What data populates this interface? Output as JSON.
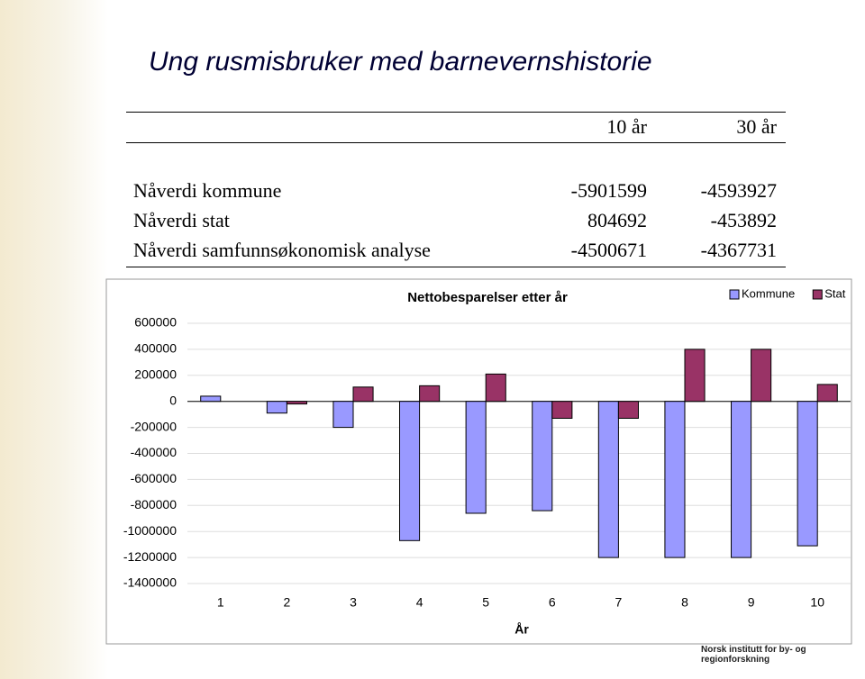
{
  "title": "Ung rusmisbruker med barnevernshistorie",
  "table": {
    "columns": [
      "10 år",
      "30 år"
    ],
    "rows": [
      [
        "Nåverdi kommune",
        "-5901599",
        "-4593927"
      ],
      [
        "Nåverdi stat",
        "804692",
        "-453892"
      ],
      [
        "Nåverdi samfunnsøkonomisk analyse",
        "-4500671",
        "-4367731"
      ]
    ]
  },
  "chart_data": {
    "type": "bar",
    "title": "Nettobesparelser etter år",
    "x_label": "År",
    "categories": [
      "1",
      "2",
      "3",
      "4",
      "5",
      "6",
      "7",
      "8",
      "9",
      "10"
    ],
    "series": [
      {
        "name": "Kommune",
        "color": "#9999ff",
        "values": [
          40000,
          -90000,
          -200000,
          -1070000,
          -860000,
          -840000,
          -1200000,
          -1200000,
          -1200000,
          -1110000
        ]
      },
      {
        "name": "Stat",
        "color": "#993366",
        "values": [
          0,
          -20000,
          110000,
          120000,
          210000,
          -130000,
          -130000,
          400000,
          400000,
          130000
        ]
      }
    ],
    "ylim": [
      -1400000,
      600000
    ],
    "yticks": [
      -1400000,
      -1200000,
      -1000000,
      -800000,
      -600000,
      -400000,
      -200000,
      0,
      200000,
      400000,
      600000
    ],
    "grid": true,
    "legend": "top-right"
  },
  "footer": "Norsk institutt for by- og regionforskning"
}
